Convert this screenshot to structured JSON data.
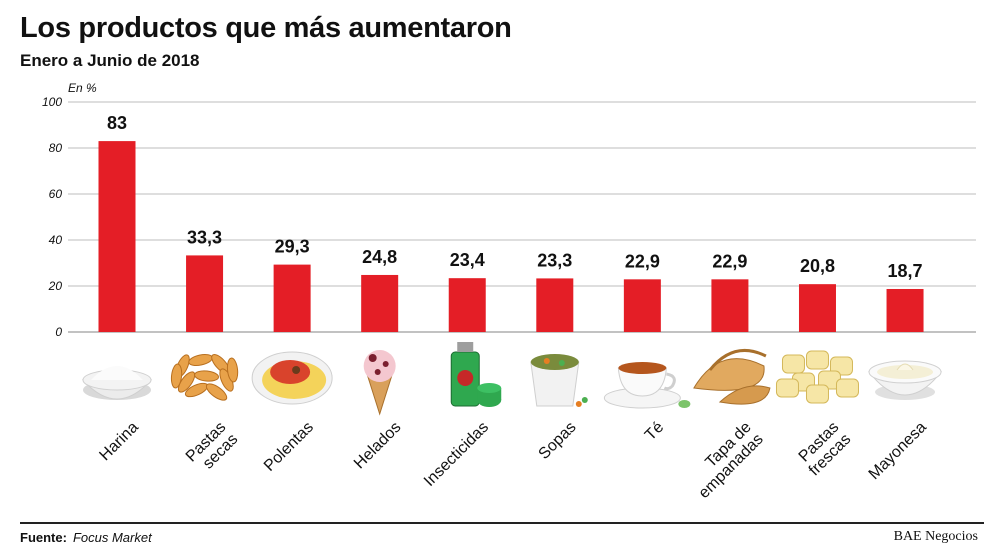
{
  "header": {
    "title": "Los productos que más aumentaron",
    "subtitle": "Enero a Junio de 2018"
  },
  "footer": {
    "source_label": "Fuente:",
    "source_value": "Focus Market",
    "brand": "BAE Negocios"
  },
  "chart_data": {
    "type": "bar",
    "unit_label": "En %",
    "categories": [
      "Harina",
      "Pastas secas",
      "Polentas",
      "Helados",
      "Insecticidas",
      "Sopas",
      "Té",
      "Tapa de empanadas",
      "Pastas frescas",
      "Mayonesa"
    ],
    "category_lines": [
      [
        "Harina"
      ],
      [
        "Pastas",
        "secas"
      ],
      [
        "Polentas"
      ],
      [
        "Helados"
      ],
      [
        "Insecticidas"
      ],
      [
        "Sopas"
      ],
      [
        "Té"
      ],
      [
        "Tapa de",
        "empanadas"
      ],
      [
        "Pastas",
        "frescas"
      ],
      [
        "Mayonesa"
      ]
    ],
    "values": [
      83,
      33.3,
      29.3,
      24.8,
      23.4,
      23.3,
      22.9,
      22.9,
      20.8,
      18.7
    ],
    "value_labels": [
      "83",
      "33,3",
      "29,3",
      "24,8",
      "23,4",
      "23,3",
      "22,9",
      "22,9",
      "20,8",
      "18,7"
    ],
    "yticks": [
      0,
      20,
      40,
      60,
      80,
      100
    ],
    "ylim": [
      0,
      100
    ],
    "grid": true,
    "bar_color": "#e41e26",
    "icons": [
      "flour-bowl-icon",
      "fusilli-pasta-icon",
      "polenta-plate-icon",
      "ice-cream-cone-icon",
      "insecticide-can-icon",
      "soup-cup-icon",
      "tea-cup-icon",
      "empanada-icon",
      "ravioli-icon",
      "mayonnaise-bowl-icon"
    ]
  }
}
